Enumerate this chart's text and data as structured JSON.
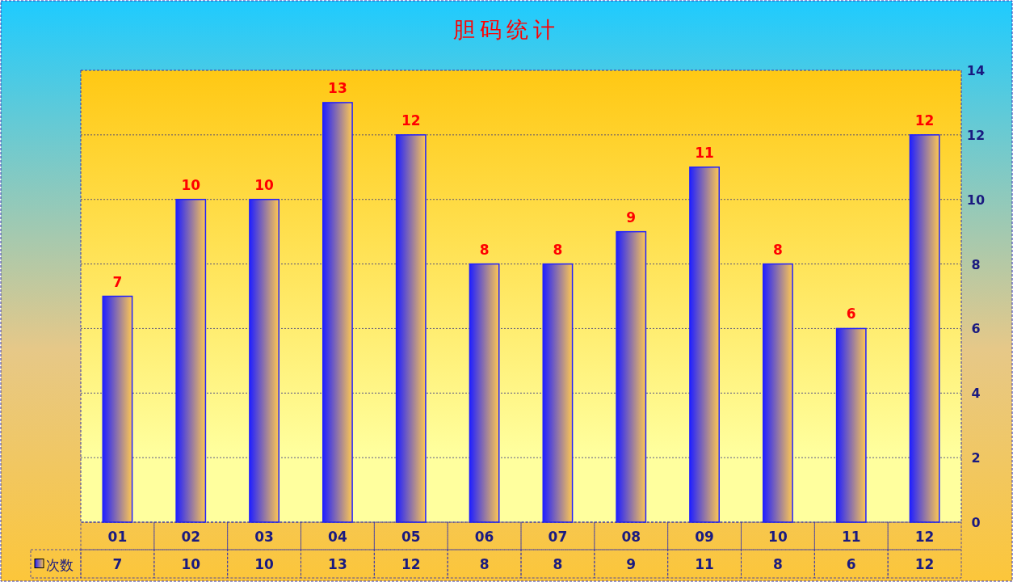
{
  "chart_data": {
    "type": "bar",
    "title": "胆码统计",
    "categories": [
      "01",
      "02",
      "03",
      "04",
      "05",
      "06",
      "07",
      "08",
      "09",
      "10",
      "11",
      "12"
    ],
    "series": [
      {
        "name": "次数",
        "color": "#2020ff",
        "values": [
          7,
          10,
          10,
          13,
          12,
          8,
          8,
          9,
          11,
          8,
          6,
          12
        ],
        "value_labels": [
          "7",
          "10",
          "10",
          "13",
          "12",
          "8",
          "8",
          "9",
          "11",
          "8",
          "6",
          "12"
        ]
      }
    ],
    "ylim": [
      0,
      14
    ],
    "yticks": [
      0,
      2,
      4,
      6,
      8,
      10,
      12,
      14
    ],
    "grid": "y",
    "data_labels": true,
    "legend": "bottom"
  }
}
